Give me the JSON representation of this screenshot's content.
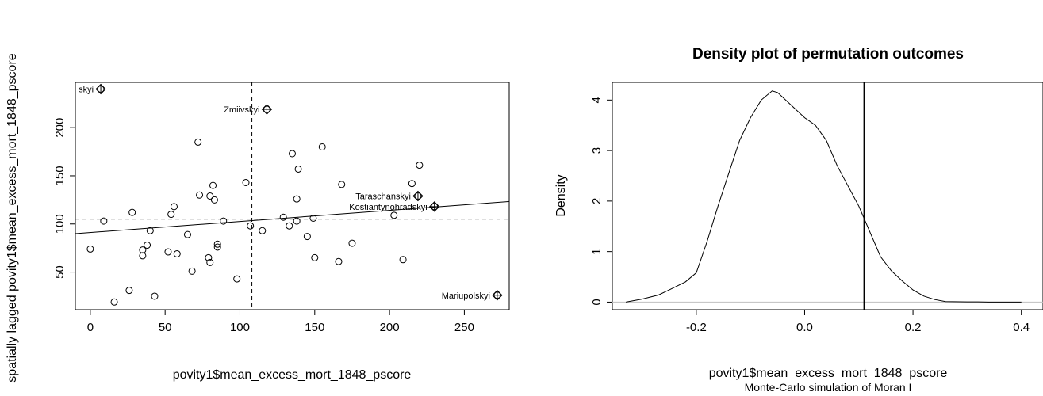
{
  "chart_data": [
    {
      "type": "scatter",
      "title": "",
      "xlabel": "povity1$mean_excess_mort_1848_pscore",
      "ylabel": "spatially lagged povity1$mean_excess_mort_1848_pscore",
      "xlim": [
        -10,
        280
      ],
      "ylim": [
        11,
        247
      ],
      "xticks": [
        "0",
        "50",
        "100",
        "150",
        "200",
        "250"
      ],
      "yticks": [
        "50",
        "100",
        "150",
        "200"
      ],
      "mean_x": 108,
      "mean_y": 105,
      "regression": {
        "intercept": 91.1,
        "slope": 0.115
      },
      "points": [
        {
          "x": 0,
          "y": 74
        },
        {
          "x": 9,
          "y": 103
        },
        {
          "x": 16,
          "y": 19
        },
        {
          "x": 26,
          "y": 31
        },
        {
          "x": 28,
          "y": 112
        },
        {
          "x": 35,
          "y": 67
        },
        {
          "x": 35,
          "y": 73
        },
        {
          "x": 38,
          "y": 78
        },
        {
          "x": 40,
          "y": 93
        },
        {
          "x": 43,
          "y": 25
        },
        {
          "x": 52,
          "y": 71
        },
        {
          "x": 54,
          "y": 110
        },
        {
          "x": 56,
          "y": 118
        },
        {
          "x": 58,
          "y": 69
        },
        {
          "x": 65,
          "y": 89
        },
        {
          "x": 68,
          "y": 51
        },
        {
          "x": 72,
          "y": 185
        },
        {
          "x": 73,
          "y": 130
        },
        {
          "x": 79,
          "y": 65
        },
        {
          "x": 80,
          "y": 129
        },
        {
          "x": 80,
          "y": 60
        },
        {
          "x": 82,
          "y": 140
        },
        {
          "x": 83,
          "y": 125
        },
        {
          "x": 85,
          "y": 79
        },
        {
          "x": 85,
          "y": 76
        },
        {
          "x": 89,
          "y": 103
        },
        {
          "x": 98,
          "y": 43
        },
        {
          "x": 104,
          "y": 143
        },
        {
          "x": 107,
          "y": 98
        },
        {
          "x": 115,
          "y": 93
        },
        {
          "x": 129,
          "y": 107
        },
        {
          "x": 133,
          "y": 98
        },
        {
          "x": 135,
          "y": 173
        },
        {
          "x": 138,
          "y": 126
        },
        {
          "x": 138,
          "y": 103
        },
        {
          "x": 139,
          "y": 157
        },
        {
          "x": 145,
          "y": 87
        },
        {
          "x": 149,
          "y": 106
        },
        {
          "x": 150,
          "y": 65
        },
        {
          "x": 155,
          "y": 180
        },
        {
          "x": 166,
          "y": 61
        },
        {
          "x": 168,
          "y": 141
        },
        {
          "x": 175,
          "y": 80
        },
        {
          "x": 203,
          "y": 109
        },
        {
          "x": 209,
          "y": 63
        },
        {
          "x": 215,
          "y": 142
        },
        {
          "x": 220,
          "y": 161
        }
      ],
      "influential": [
        {
          "x": 7,
          "y": 240,
          "label": "skyi"
        },
        {
          "x": 118,
          "y": 219,
          "label": "Zmiivskyi"
        },
        {
          "x": 219,
          "y": 129,
          "label": "Taraschanskyi"
        },
        {
          "x": 230,
          "y": 118,
          "label": "Kostiantynohradskyi"
        },
        {
          "x": 272,
          "y": 26,
          "label": "Mariupolskyi"
        }
      ]
    },
    {
      "type": "line",
      "title": "Density plot of permutation outcomes",
      "xlabel": "povity1$mean_excess_mort_1848_pscore",
      "subtitle": "Monte-Carlo simulation of Moran I",
      "ylabel": "Density",
      "xlim": [
        -0.355,
        0.44
      ],
      "ylim": [
        -0.15,
        4.35
      ],
      "xticks": [
        "-0.2",
        "0.0",
        "0.2",
        "0.4"
      ],
      "yticks": [
        "0",
        "1",
        "2",
        "3",
        "4"
      ],
      "observed_value": 0.11,
      "curve": [
        [
          -0.33,
          0.0
        ],
        [
          -0.3,
          0.06
        ],
        [
          -0.27,
          0.14
        ],
        [
          -0.25,
          0.24
        ],
        [
          -0.22,
          0.4
        ],
        [
          -0.2,
          0.58
        ],
        [
          -0.18,
          1.2
        ],
        [
          -0.16,
          1.9
        ],
        [
          -0.14,
          2.55
        ],
        [
          -0.12,
          3.2
        ],
        [
          -0.1,
          3.65
        ],
        [
          -0.08,
          4.0
        ],
        [
          -0.06,
          4.18
        ],
        [
          -0.05,
          4.15
        ],
        [
          -0.04,
          4.05
        ],
        [
          -0.02,
          3.85
        ],
        [
          0.0,
          3.65
        ],
        [
          0.02,
          3.5
        ],
        [
          0.04,
          3.2
        ],
        [
          0.06,
          2.7
        ],
        [
          0.08,
          2.3
        ],
        [
          0.1,
          1.9
        ],
        [
          0.12,
          1.4
        ],
        [
          0.14,
          0.9
        ],
        [
          0.16,
          0.62
        ],
        [
          0.18,
          0.42
        ],
        [
          0.2,
          0.24
        ],
        [
          0.22,
          0.12
        ],
        [
          0.24,
          0.05
        ],
        [
          0.26,
          0.01
        ],
        [
          0.3,
          0.005
        ],
        [
          0.32,
          0.005
        ],
        [
          0.34,
          0.0
        ],
        [
          0.4,
          0.0
        ]
      ]
    }
  ]
}
